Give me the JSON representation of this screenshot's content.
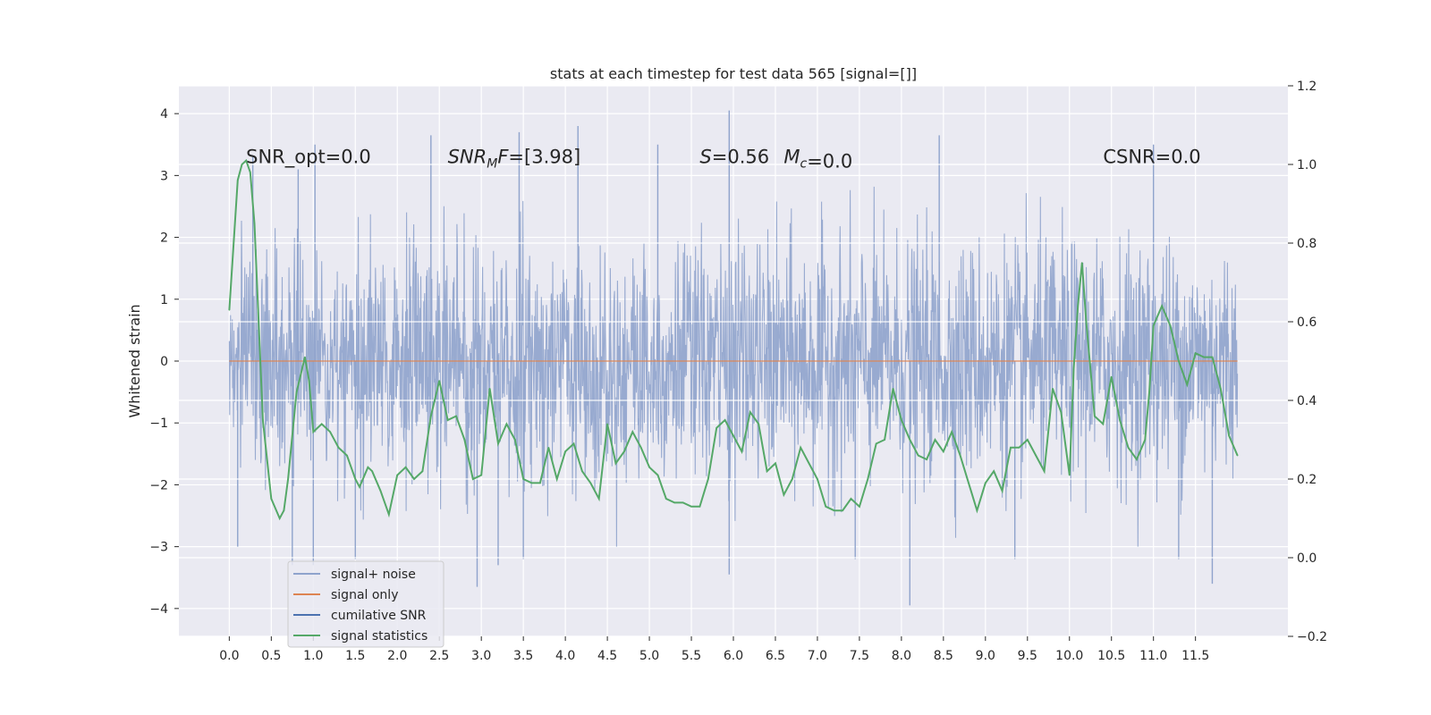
{
  "chart_data": {
    "type": "line",
    "title": "stats at each timestep for test data 565 [signal=[]]",
    "ylabel": "Whitened strain",
    "ylabel_right": "",
    "xlim": [
      -0.6,
      12.6
    ],
    "ylim": [
      -4.45,
      4.45
    ],
    "ylim_right": [
      -0.2,
      1.2
    ],
    "x_ticks": [
      0.0,
      0.5,
      1.0,
      1.5,
      2.0,
      2.5,
      3.0,
      3.5,
      4.0,
      4.5,
      5.0,
      5.5,
      6.0,
      6.5,
      7.0,
      7.5,
      8.0,
      8.5,
      9.0,
      9.5,
      10.0,
      10.5,
      11.0,
      11.5
    ],
    "x_tick_labels": [
      "0.0",
      "0.5",
      "1.0",
      "1.5",
      "2.0",
      "2.5",
      "3.0",
      "3.5",
      "4.0",
      "4.5",
      "5.0",
      "5.5",
      "6.0",
      "6.5",
      "7.0",
      "7.5",
      "8.0",
      "8.5",
      "9.0",
      "9.5",
      "10.0",
      "10.5",
      "11.0",
      "11.5"
    ],
    "y_ticks": [
      -4,
      -3,
      -2,
      -1,
      0,
      1,
      2,
      3,
      4
    ],
    "y_tick_labels": [
      "−4",
      "−3",
      "−2",
      "−1",
      "0",
      "1",
      "2",
      "3",
      "4"
    ],
    "y_ticks_right": [
      -0.2,
      0.0,
      0.2,
      0.4,
      0.6,
      0.8,
      1.0,
      1.2
    ],
    "y_tick_labels_right": [
      "−0.2",
      "0.0",
      "0.2",
      "0.4",
      "0.6",
      "0.8",
      "1.0",
      "1.2"
    ],
    "grid": true,
    "legend_position": "lower-left",
    "series": [
      {
        "name": "signal+ noise",
        "color": "#8fa3cc",
        "axis": "left",
        "x_range": [
          0.0,
          12.0
        ],
        "typical_range": [
          -2.2,
          2.2
        ],
        "peak_markers": [
          {
            "x": 0.28,
            "y": 3.3
          },
          {
            "x": 0.82,
            "y": 3.1
          },
          {
            "x": 1.02,
            "y": 3.5
          },
          {
            "x": 2.4,
            "y": 3.65
          },
          {
            "x": 3.45,
            "y": 3.7
          },
          {
            "x": 4.15,
            "y": 3.8
          },
          {
            "x": 5.1,
            "y": 3.5
          },
          {
            "x": 5.95,
            "y": 4.05
          },
          {
            "x": 8.45,
            "y": 3.65
          },
          {
            "x": 11.0,
            "y": 3.5
          },
          {
            "x": 2.95,
            "y": -3.65
          },
          {
            "x": 3.2,
            "y": -3.3
          },
          {
            "x": 1.0,
            "y": -3.3
          },
          {
            "x": 3.5,
            "y": -3.2
          },
          {
            "x": 5.95,
            "y": -3.45
          },
          {
            "x": 8.1,
            "y": -3.95
          },
          {
            "x": 11.7,
            "y": -3.6
          },
          {
            "x": 0.1,
            "y": -3.0
          },
          {
            "x": 0.75,
            "y": -3.3
          },
          {
            "x": 1.5,
            "y": -3.2
          },
          {
            "x": 7.45,
            "y": -3.2
          },
          {
            "x": 9.35,
            "y": -3.2
          },
          {
            "x": 11.3,
            "y": -3.2
          }
        ]
      },
      {
        "name": "signal only",
        "color": "#dd8452",
        "axis": "left",
        "x": [
          0.0,
          12.0
        ],
        "y": [
          0.0,
          0.0
        ]
      },
      {
        "name": "cumilative SNR",
        "color": "#4c72b0",
        "axis": "right"
      },
      {
        "name": "signal statistics",
        "color": "#55a868",
        "axis": "right",
        "x": [
          0.0,
          0.1,
          0.15,
          0.2,
          0.25,
          0.3,
          0.35,
          0.4,
          0.5,
          0.6,
          0.65,
          0.7,
          0.8,
          0.9,
          0.95,
          1.0,
          1.1,
          1.2,
          1.3,
          1.4,
          1.5,
          1.55,
          1.65,
          1.7,
          1.8,
          1.9,
          2.0,
          2.1,
          2.2,
          2.3,
          2.4,
          2.5,
          2.6,
          2.7,
          2.8,
          2.9,
          3.0,
          3.1,
          3.2,
          3.3,
          3.4,
          3.5,
          3.6,
          3.7,
          3.8,
          3.9,
          4.0,
          4.1,
          4.2,
          4.3,
          4.4,
          4.5,
          4.6,
          4.7,
          4.8,
          4.9,
          5.0,
          5.1,
          5.2,
          5.3,
          5.4,
          5.5,
          5.6,
          5.7,
          5.8,
          5.9,
          6.0,
          6.1,
          6.2,
          6.3,
          6.4,
          6.5,
          6.6,
          6.7,
          6.8,
          6.9,
          7.0,
          7.1,
          7.2,
          7.3,
          7.4,
          7.5,
          7.6,
          7.7,
          7.8,
          7.9,
          8.0,
          8.1,
          8.2,
          8.3,
          8.4,
          8.5,
          8.6,
          8.7,
          8.8,
          8.9,
          9.0,
          9.1,
          9.2,
          9.3,
          9.4,
          9.5,
          9.6,
          9.7,
          9.8,
          9.9,
          10.0,
          10.05,
          10.1,
          10.15,
          10.2,
          10.3,
          10.4,
          10.5,
          10.6,
          10.7,
          10.8,
          10.9,
          10.95,
          11.0,
          11.1,
          11.2,
          11.3,
          11.4,
          11.5,
          11.6,
          11.7,
          11.8,
          11.9,
          12.0
        ],
        "y": [
          0.63,
          0.96,
          1.0,
          1.01,
          0.98,
          0.85,
          0.6,
          0.35,
          0.15,
          0.1,
          0.12,
          0.2,
          0.42,
          0.51,
          0.45,
          0.32,
          0.34,
          0.32,
          0.28,
          0.26,
          0.2,
          0.18,
          0.23,
          0.22,
          0.17,
          0.11,
          0.21,
          0.23,
          0.2,
          0.22,
          0.36,
          0.45,
          0.35,
          0.36,
          0.3,
          0.2,
          0.21,
          0.43,
          0.29,
          0.34,
          0.3,
          0.2,
          0.19,
          0.19,
          0.28,
          0.2,
          0.27,
          0.29,
          0.22,
          0.19,
          0.15,
          0.34,
          0.24,
          0.27,
          0.32,
          0.28,
          0.23,
          0.21,
          0.15,
          0.14,
          0.14,
          0.13,
          0.13,
          0.2,
          0.33,
          0.35,
          0.31,
          0.27,
          0.37,
          0.34,
          0.22,
          0.24,
          0.16,
          0.2,
          0.28,
          0.24,
          0.2,
          0.13,
          0.12,
          0.12,
          0.15,
          0.13,
          0.2,
          0.29,
          0.3,
          0.43,
          0.35,
          0.3,
          0.26,
          0.25,
          0.3,
          0.27,
          0.32,
          0.26,
          0.19,
          0.12,
          0.19,
          0.22,
          0.17,
          0.28,
          0.28,
          0.3,
          0.26,
          0.22,
          0.43,
          0.37,
          0.21,
          0.48,
          0.64,
          0.75,
          0.6,
          0.36,
          0.34,
          0.46,
          0.35,
          0.28,
          0.25,
          0.3,
          0.42,
          0.59,
          0.64,
          0.59,
          0.5,
          0.44,
          0.52,
          0.51,
          0.51,
          0.43,
          0.31,
          0.26
        ]
      }
    ],
    "annotations": [
      {
        "id": "snr-opt",
        "text": "SNR_opt=0.0",
        "x": 0.2,
        "y": 3.2,
        "anchor": "start"
      },
      {
        "id": "snr-mf",
        "text": "=[3.98]",
        "math": "SNR_M F",
        "x": 2.6,
        "y": 3.2,
        "anchor": "start"
      },
      {
        "id": "s-value",
        "text": "=0.56",
        "math": "S",
        "x": 5.6,
        "y": 3.2,
        "anchor": "start"
      },
      {
        "id": "mc-value",
        "text": "=0.0",
        "math": "M_c",
        "x": 6.6,
        "y": 3.2,
        "anchor": "start"
      },
      {
        "id": "csnr",
        "text": "CSNR=0.0",
        "x": 10.4,
        "y": 3.2,
        "anchor": "start"
      }
    ]
  }
}
